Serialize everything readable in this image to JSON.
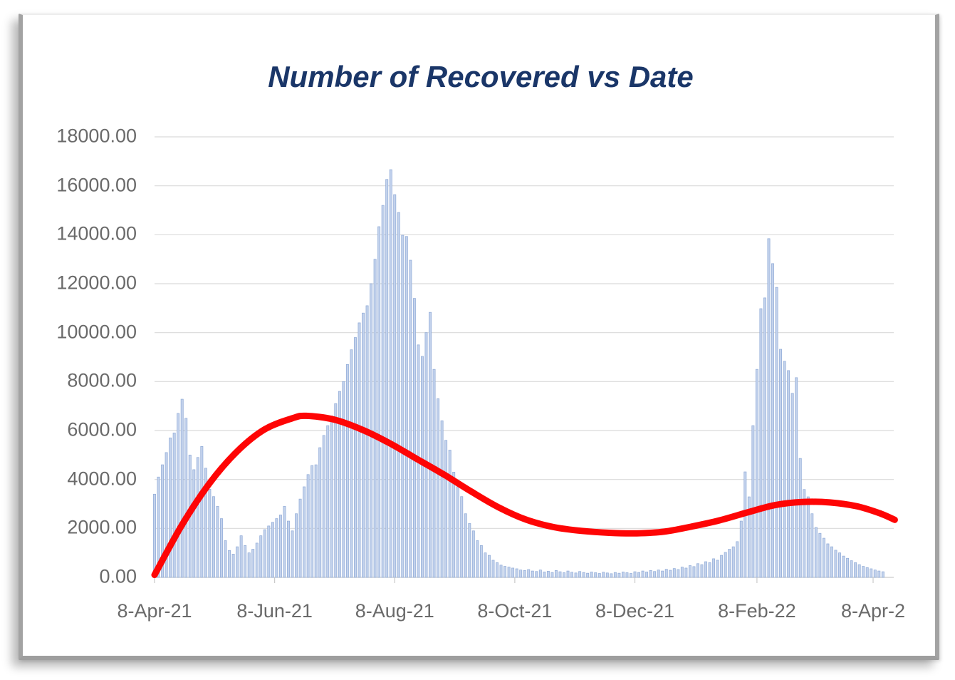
{
  "panel": {
    "type": "framed chart image on white slide background",
    "frame_color": "#a3a3a3",
    "background": "#ffffff"
  },
  "chart_data": {
    "type": "bar",
    "title": "Number of Recovered vs Date",
    "title_color": "#1a3668",
    "xlabel": "",
    "ylabel": "",
    "ylim": [
      0,
      18000
    ],
    "grid": "horizontal",
    "gridline_color": "#d9d9d9",
    "axis_text_color": "#6a6a6a",
    "bar_color": "#c3d2ec",
    "bar_edge_color": "#8ea9d6",
    "trend_color": "#fe0505",
    "legend": "none",
    "y_tick_labels": [
      "0.00",
      "2000.00",
      "4000.00",
      "6000.00",
      "8000.00",
      "10000.00",
      "12000.00",
      "14000.00",
      "16000.00",
      "18000.00"
    ],
    "y_tick_values": [
      0,
      2000,
      4000,
      6000,
      8000,
      10000,
      12000,
      14000,
      16000,
      18000
    ],
    "x_ticks": [
      {
        "label": "8-Apr-21",
        "day": 0
      },
      {
        "label": "8-Jun-21",
        "day": 61
      },
      {
        "label": "8-Aug-21",
        "day": 122
      },
      {
        "label": "8-Oct-21",
        "day": 183
      },
      {
        "label": "8-Dec-21",
        "day": 244
      },
      {
        "label": "8-Feb-22",
        "day": 306
      },
      {
        "label": "8-Apr-2",
        "day": 365
      }
    ],
    "x_axis_span_days": [
      0,
      376
    ],
    "series": [
      {
        "name": "Number of Recovered (daily bars)",
        "type": "bar",
        "start_day": 0,
        "sample_interval_days": 2,
        "values": [
          3400,
          4100,
          4600,
          5100,
          5700,
          5900,
          6700,
          7280,
          6500,
          5000,
          4400,
          4900,
          5350,
          4460,
          3600,
          3300,
          2900,
          2400,
          1500,
          1100,
          950,
          1250,
          1700,
          1300,
          1000,
          1150,
          1400,
          1700,
          1950,
          2100,
          2250,
          2400,
          2550,
          2900,
          2300,
          1900,
          2600,
          3200,
          3700,
          4200,
          4570,
          4600,
          5300,
          5800,
          6200,
          6600,
          7100,
          7600,
          8000,
          8700,
          9300,
          9800,
          10400,
          10800,
          11100,
          12000,
          13000,
          14330,
          15200,
          16260,
          16660,
          15640,
          14910,
          13980,
          13930,
          12960,
          11400,
          9500,
          9030,
          10000,
          10830,
          8500,
          7300,
          6400,
          5600,
          5200,
          4300,
          3700,
          3300,
          2600,
          2200,
          1900,
          1500,
          1300,
          1000,
          900,
          700,
          600,
          500,
          450,
          420,
          380,
          350,
          300,
          280,
          320,
          260,
          240,
          300,
          220,
          250,
          200,
          280,
          230,
          190,
          260,
          210,
          180,
          240,
          200,
          170,
          220,
          190,
          160,
          210,
          180,
          150,
          200,
          170,
          220,
          190,
          160,
          230,
          200,
          260,
          220,
          280,
          240,
          300,
          260,
          330,
          290,
          360,
          320,
          420,
          380,
          480,
          440,
          560,
          520,
          640,
          600,
          760,
          700,
          900,
          1020,
          1150,
          1250,
          1460,
          2300,
          4310,
          3290,
          6200,
          8500,
          10980,
          11420,
          13840,
          12820,
          11850,
          9320,
          8830,
          8450,
          7520,
          8160,
          4860,
          3590,
          3290,
          2600,
          2040,
          1800,
          1600,
          1370,
          1250,
          1110,
          1000,
          870,
          780,
          680,
          600,
          520,
          450,
          400,
          350,
          300,
          260,
          230
        ]
      },
      {
        "name": "Trend line (polynomial fit)",
        "type": "line",
        "points": [
          [
            0,
            100
          ],
          [
            14,
            2150
          ],
          [
            28,
            3850
          ],
          [
            42,
            5150
          ],
          [
            56,
            6050
          ],
          [
            70,
            6500
          ],
          [
            77,
            6600
          ],
          [
            91,
            6450
          ],
          [
            105,
            6050
          ],
          [
            119,
            5500
          ],
          [
            133,
            4850
          ],
          [
            147,
            4200
          ],
          [
            161,
            3500
          ],
          [
            175,
            2850
          ],
          [
            189,
            2350
          ],
          [
            203,
            2050
          ],
          [
            217,
            1900
          ],
          [
            231,
            1820
          ],
          [
            245,
            1800
          ],
          [
            259,
            1870
          ],
          [
            273,
            2080
          ],
          [
            287,
            2330
          ],
          [
            301,
            2650
          ],
          [
            315,
            2950
          ],
          [
            329,
            3080
          ],
          [
            343,
            3060
          ],
          [
            357,
            2900
          ],
          [
            369,
            2600
          ],
          [
            376,
            2350
          ]
        ]
      }
    ]
  }
}
